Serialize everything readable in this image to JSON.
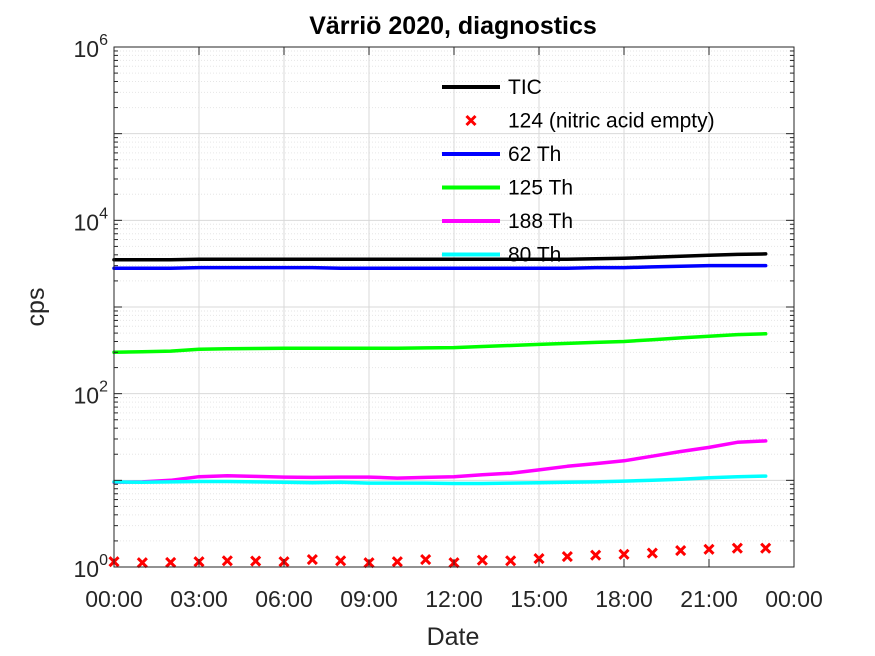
{
  "chart_data": {
    "type": "line",
    "title": "Värriö 2020, diagnostics",
    "xlabel": "Date",
    "ylabel": "cps",
    "y_scale": "log",
    "ylim": [
      1,
      1000000
    ],
    "xlim": [
      "00:00",
      "24:00"
    ],
    "grid": true,
    "legend_position": "top-right (inside)",
    "x_tick_labels": [
      "00:00",
      "03:00",
      "06:00",
      "09:00",
      "12:00",
      "15:00",
      "18:00",
      "21:00",
      "00:00"
    ],
    "y_ticks": [
      {
        "base": "10",
        "exp": "0"
      },
      {
        "base": "10",
        "exp": "2"
      },
      {
        "base": "10",
        "exp": "4"
      },
      {
        "base": "10",
        "exp": "6"
      }
    ],
    "x_hours": [
      0,
      1,
      2,
      3,
      4,
      5,
      6,
      7,
      8,
      9,
      10,
      11,
      12,
      13,
      14,
      15,
      16,
      17,
      18,
      19,
      20,
      21,
      22,
      23
    ],
    "series": [
      {
        "name": "TIC",
        "style": "line",
        "color": "#000000",
        "values": [
          3500,
          3500,
          3500,
          3550,
          3550,
          3550,
          3550,
          3550,
          3550,
          3550,
          3550,
          3550,
          3550,
          3550,
          3550,
          3550,
          3550,
          3600,
          3650,
          3750,
          3850,
          3950,
          4050,
          4100
        ]
      },
      {
        "name": "124 (nitric acid empty)",
        "style": "marker-x",
        "color": "#ff0000",
        "values": [
          1.15,
          1.12,
          1.13,
          1.15,
          1.18,
          1.17,
          1.15,
          1.22,
          1.18,
          1.12,
          1.15,
          1.22,
          1.12,
          1.2,
          1.18,
          1.25,
          1.32,
          1.37,
          1.4,
          1.45,
          1.55,
          1.6,
          1.65,
          1.65
        ]
      },
      {
        "name": "62 Th",
        "style": "line",
        "color": "#0000ff",
        "values": [
          2800,
          2800,
          2800,
          2850,
          2850,
          2850,
          2850,
          2850,
          2800,
          2800,
          2800,
          2800,
          2800,
          2800,
          2800,
          2800,
          2800,
          2850,
          2850,
          2900,
          2950,
          3000,
          3000,
          3000
        ]
      },
      {
        "name": "125 Th",
        "style": "line",
        "color": "#00ff00",
        "values": [
          300,
          305,
          310,
          325,
          330,
          332,
          335,
          335,
          335,
          335,
          335,
          337,
          340,
          350,
          360,
          370,
          380,
          390,
          400,
          420,
          440,
          460,
          480,
          490
        ]
      },
      {
        "name": "188 Th",
        "style": "line",
        "color": "#ff00ff",
        "values": [
          9.5,
          9.6,
          10,
          11,
          11.3,
          11.1,
          10.9,
          10.8,
          10.9,
          10.9,
          10.6,
          10.8,
          11,
          11.6,
          12.1,
          13.2,
          14.5,
          15.6,
          16.8,
          19,
          21.5,
          24,
          27.5,
          28.5
        ]
      },
      {
        "name": "80 Th",
        "style": "line",
        "color": "#00ffff",
        "values": [
          9.6,
          9.5,
          9.6,
          9.7,
          9.7,
          9.6,
          9.5,
          9.4,
          9.5,
          9.3,
          9.3,
          9.3,
          9.2,
          9.2,
          9.3,
          9.4,
          9.5,
          9.6,
          9.8,
          10,
          10.3,
          10.7,
          11,
          11.2
        ]
      }
    ]
  }
}
